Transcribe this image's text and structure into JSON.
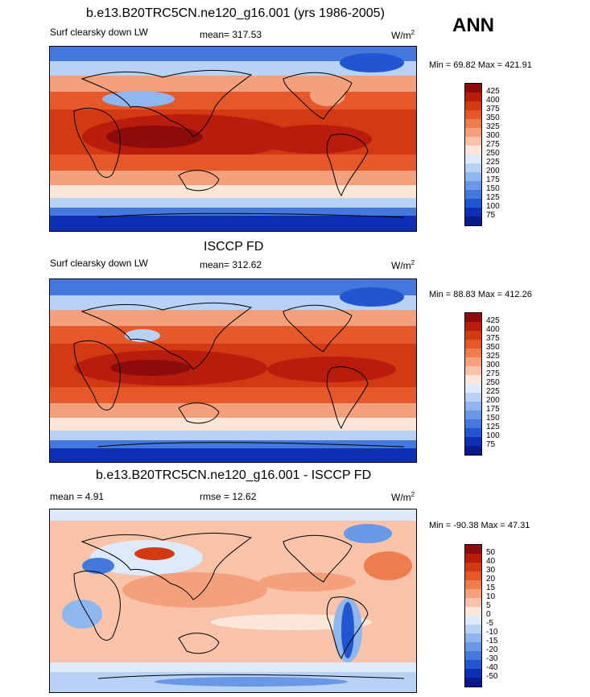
{
  "season": "ANN",
  "panels": [
    {
      "title": "b.e13.B20TRC5CN.ne120_g16.001 (yrs 1986-2005)",
      "left_label": "Surf clearsky down LW",
      "center_label": "mean= 317.53",
      "units": "W/m",
      "units_sup": "2",
      "minmax": "Min =  69.82 Max = 421.91",
      "levels": [
        "425",
        "400",
        "375",
        "350",
        "325",
        "300",
        "275",
        "250",
        "225",
        "200",
        "175",
        "150",
        "125",
        "100",
        "75"
      ],
      "colors": [
        "#8e0b0b",
        "#b81c0c",
        "#d23a14",
        "#e4582a",
        "#ee7d4e",
        "#f4a07c",
        "#f8c3a8",
        "#fbe6d8",
        "#dceafb",
        "#b7d2f4",
        "#90b6ee",
        "#6b98e6",
        "#4478dc",
        "#2255d0",
        "#0d2fb4",
        "#061a8c"
      ]
    },
    {
      "title": "ISCCP FD",
      "left_label": "Surf clearsky down LW",
      "center_label": "mean= 312.62",
      "units": "W/m",
      "units_sup": "2",
      "minmax": "Min =  88.83 Max = 412.26",
      "levels": [
        "425",
        "400",
        "375",
        "350",
        "325",
        "300",
        "275",
        "250",
        "225",
        "200",
        "175",
        "150",
        "125",
        "100",
        "75"
      ],
      "colors": [
        "#8e0b0b",
        "#b81c0c",
        "#d23a14",
        "#e4582a",
        "#ee7d4e",
        "#f4a07c",
        "#f8c3a8",
        "#fbe6d8",
        "#dceafb",
        "#b7d2f4",
        "#90b6ee",
        "#6b98e6",
        "#4478dc",
        "#2255d0",
        "#0d2fb4",
        "#061a8c"
      ]
    },
    {
      "title": "b.e13.B20TRC5CN.ne120_g16.001 - ISCCP FD",
      "left_label": "mean =   4.91",
      "center_label": "rmse =  12.62",
      "units": "W/m",
      "units_sup": "2",
      "minmax": "Min = -90.38 Max =  47.31",
      "levels": [
        "50",
        "40",
        "30",
        "20",
        "15",
        "10",
        "5",
        "0",
        "-5",
        "-10",
        "-15",
        "-20",
        "-30",
        "-40",
        "-50"
      ],
      "colors": [
        "#8e0b0b",
        "#b81c0c",
        "#d23a14",
        "#e4582a",
        "#ee7d4e",
        "#f4a07c",
        "#f8c3a8",
        "#fbe6d8",
        "#dceafb",
        "#b7d2f4",
        "#90b6ee",
        "#6b98e6",
        "#4478dc",
        "#2255d0",
        "#0d2fb4",
        "#061a8c"
      ]
    }
  ]
}
